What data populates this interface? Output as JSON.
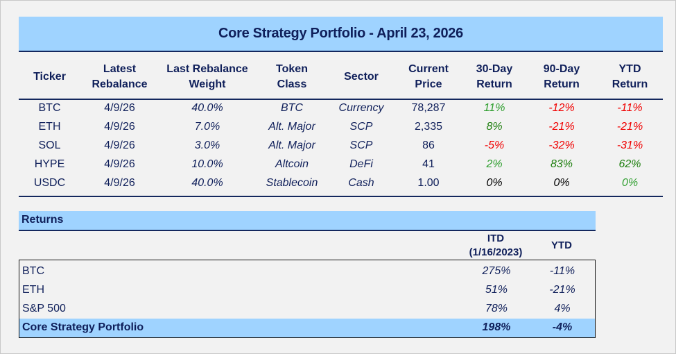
{
  "title": "Core Strategy Portfolio - April 23, 2026",
  "headers": [
    "Ticker",
    "Latest\nRebalance",
    "Last Rebalance\nWeight",
    "Token\nClass",
    "Sector",
    "Current\nPrice",
    "30-Day\nReturn",
    "90-Day\nReturn",
    "YTD\nReturn"
  ],
  "holdings": [
    {
      "ticker": "BTC",
      "rebalance": "4/9/26",
      "weight": "40.0%",
      "class": "BTC",
      "sector": "Currency",
      "price": "78,287",
      "r30": "11%",
      "r30_color": "green",
      "r90": "-12%",
      "r90_color": "red",
      "ytd": "-11%",
      "ytd_color": "red"
    },
    {
      "ticker": "ETH",
      "rebalance": "4/9/26",
      "weight": "7.0%",
      "class": "Alt. Major",
      "sector": "SCP",
      "price": "2,335",
      "r30": "8%",
      "r30_color": "dgreen",
      "r90": "-21%",
      "r90_color": "red",
      "ytd": "-21%",
      "ytd_color": "red"
    },
    {
      "ticker": "SOL",
      "rebalance": "4/9/26",
      "weight": "3.0%",
      "class": "Alt. Major",
      "sector": "SCP",
      "price": "86",
      "r30": "-5%",
      "r30_color": "red",
      "r90": "-32%",
      "r90_color": "red",
      "ytd": "-31%",
      "ytd_color": "red"
    },
    {
      "ticker": "HYPE",
      "rebalance": "4/9/26",
      "weight": "10.0%",
      "class": "Altcoin",
      "sector": "DeFi",
      "price": "41",
      "r30": "2%",
      "r30_color": "green",
      "r90": "83%",
      "r90_color": "dgreen",
      "ytd": "62%",
      "ytd_color": "dgreen"
    },
    {
      "ticker": "USDC",
      "rebalance": "4/9/26",
      "weight": "40.0%",
      "class": "Stablecoin",
      "sector": "Cash",
      "price": "1.00",
      "r30": "0%",
      "r30_color": "black",
      "r90": "0%",
      "r90_color": "black",
      "ytd": "0%",
      "ytd_color": "green"
    }
  ],
  "returns": {
    "title": "Returns",
    "itd_label": "ITD",
    "itd_date": "(1/16/2023)",
    "ytd_label": "YTD",
    "rows": [
      {
        "name": "BTC",
        "itd": "275%",
        "ytd": "-11%"
      },
      {
        "name": "ETH",
        "itd": "51%",
        "ytd": "-21%"
      },
      {
        "name": "S&P 500",
        "itd": "78%",
        "ytd": "4%"
      },
      {
        "name": "Core Strategy Portfolio",
        "itd": "198%",
        "ytd": "-4%",
        "highlight": true
      }
    ]
  }
}
